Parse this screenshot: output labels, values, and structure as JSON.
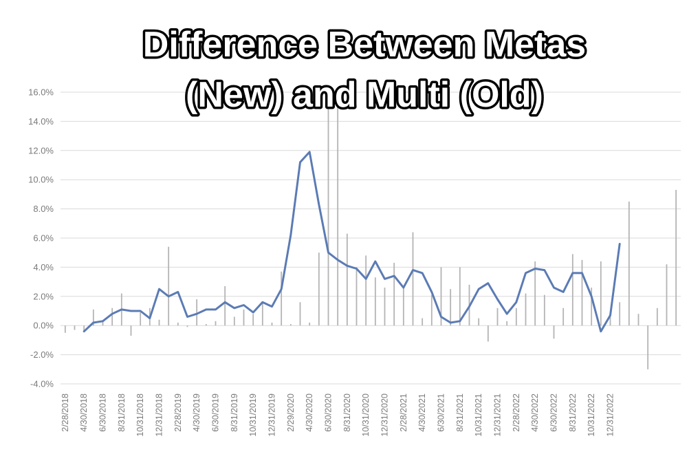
{
  "chart_data": {
    "type": "line",
    "title_lines": [
      "Difference Between Metas",
      "(New) and Multi (Old)"
    ],
    "xlabel": "",
    "ylabel": "",
    "ylim": [
      -0.04,
      0.16
    ],
    "y_tick_values": [
      -0.04,
      -0.02,
      0.0,
      0.02,
      0.04,
      0.06,
      0.08,
      0.1,
      0.12,
      0.14,
      0.16
    ],
    "y_tick_labels": [
      "-4.0%",
      "-2.0%",
      "0.0%",
      "2.0%",
      "4.0%",
      "6.0%",
      "8.0%",
      "10.0%",
      "12.0%",
      "14.0%",
      "16.0%"
    ],
    "x_tick_labels": [
      "2/28/2018",
      "4/30/2018",
      "6/30/2018",
      "8/31/2018",
      "10/31/2018",
      "12/31/2018",
      "2/28/2019",
      "4/30/2019",
      "6/30/2019",
      "8/31/2019",
      "10/31/2019",
      "12/31/2019",
      "2/29/2020",
      "4/30/2020",
      "6/30/2020",
      "8/31/2020",
      "10/31/2020",
      "12/31/2020",
      "2/28/2021",
      "4/30/2021",
      "6/30/2021",
      "8/31/2021",
      "10/31/2021",
      "12/31/2021",
      "2/28/2022",
      "4/30/2022",
      "6/30/2022",
      "8/31/2022",
      "10/31/2022",
      "12/31/2022"
    ],
    "grid": true,
    "legend": "none",
    "colors": {
      "line": "#5b7bb4",
      "bars": "#b4b4b4",
      "grid": "#d9d9d9"
    },
    "series": [
      {
        "type": "bar",
        "values": [
          -0.005,
          -0.003,
          -0.004,
          0.011,
          0.003,
          0.012,
          0.022,
          -0.007,
          0.009,
          0.012,
          0.004,
          0.054,
          0.002,
          -0.001,
          0.018,
          0.001,
          0.003,
          0.027,
          0.006,
          0.011,
          0.008,
          0.016,
          0.002,
          0.037,
          0.001,
          0.016,
          0.002,
          0.05,
          0.155,
          0.152,
          0.063,
          0.04,
          0.048,
          0.033,
          0.026,
          0.043,
          0.026,
          0.064,
          0.005,
          0.021,
          0.04,
          0.025,
          0.04,
          0.028,
          0.005,
          -0.011,
          0.012,
          0.003,
          0.012,
          0.022,
          0.044,
          0.021,
          -0.009,
          0.012,
          0.049,
          0.045,
          0.026,
          0.044,
          0.008,
          0.016,
          0.085,
          0.008,
          -0.03,
          0.012,
          0.042,
          0.093
        ]
      },
      {
        "type": "line",
        "values": [
          null,
          null,
          -0.004,
          0.002,
          0.003,
          0.008,
          0.011,
          0.01,
          0.01,
          0.005,
          0.025,
          0.02,
          0.023,
          0.006,
          0.008,
          0.011,
          0.011,
          0.016,
          0.012,
          0.014,
          0.009,
          0.016,
          0.013,
          0.025,
          0.062,
          0.112,
          0.119,
          0.083,
          0.05,
          0.045,
          0.041,
          0.039,
          0.032,
          0.044,
          0.032,
          0.034,
          0.026,
          0.038,
          0.036,
          0.023,
          0.006,
          0.002,
          0.003,
          0.013,
          0.025,
          0.029,
          0.018,
          0.008,
          0.016,
          0.036,
          0.039,
          0.038,
          0.026,
          0.023,
          0.036,
          0.036,
          0.02,
          -0.004,
          0.007,
          0.056
        ]
      }
    ]
  }
}
